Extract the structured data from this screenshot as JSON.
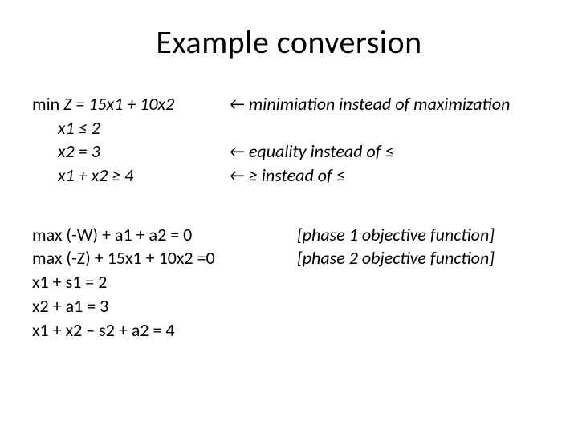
{
  "title": "Example conversion",
  "block1": {
    "r1": {
      "left_prefix": "min ",
      "left_expr": "Z = 15x1 + 10x2",
      "note": "← minimiation instead of maximization"
    },
    "r2": {
      "left": "x1 ≤ 2",
      "note": ""
    },
    "r3": {
      "left": "x2 = 3",
      "note": "← equality instead of ≤"
    },
    "r4": {
      "left": "x1 + x2 ≥ 4",
      "note": "← ≥ instead of ≤"
    }
  },
  "block2": {
    "r1": {
      "left": "max (-W) + a1 + a2 = 0",
      "note": "[phase 1 objective function]"
    },
    "r2": {
      "left": "max (-Z) + 15x1 + 10x2 =0",
      "note": "[phase 2 objective function]"
    },
    "r3": {
      "left": "x1 + s1 = 2"
    },
    "r4": {
      "left": "x2 + a1 = 3"
    },
    "r5": {
      "left": "x1 + x2 – s2 + a2 = 4"
    }
  },
  "colors": {
    "text": "#000000",
    "background": "#ffffff"
  },
  "fonts": {
    "title_size_pt": 40,
    "body_size_pt": 22,
    "family": "Calibri"
  }
}
